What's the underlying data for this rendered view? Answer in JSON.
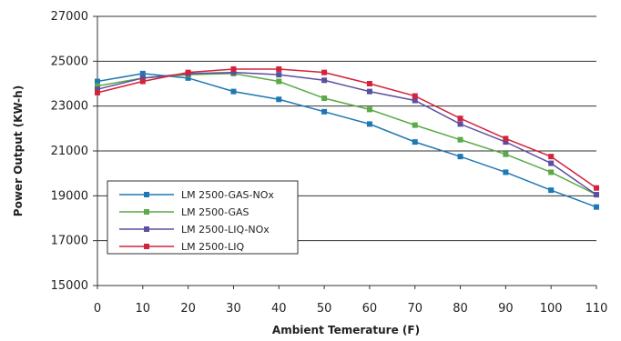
{
  "chart_data": {
    "type": "line",
    "xlabel": "Ambient Temerature (F)",
    "ylabel": "Power Output (KW-h)",
    "x": [
      0,
      10,
      20,
      30,
      40,
      50,
      60,
      70,
      80,
      90,
      100,
      110
    ],
    "xticks": [
      "0",
      "10",
      "20",
      "30",
      "40",
      "50",
      "60",
      "70",
      "80",
      "90",
      "100",
      "110"
    ],
    "yticks": [
      "15000",
      "17000",
      "19000",
      "21000",
      "23000",
      "25000",
      "27000"
    ],
    "xlim": [
      0,
      110
    ],
    "ylim": [
      15000,
      27000
    ],
    "grid": "horizontal",
    "legend_position": "lower-left",
    "series": [
      {
        "name": "LM 2500-GAS-NOx",
        "color": "#1f77b4",
        "values": [
          24100,
          24450,
          24250,
          23650,
          23300,
          22750,
          22200,
          21400,
          20750,
          20050,
          19250,
          18500
        ]
      },
      {
        "name": "LM 2500-GAS",
        "color": "#5aaa46",
        "values": [
          23900,
          24250,
          24400,
          24450,
          24100,
          23350,
          22850,
          22150,
          21500,
          20850,
          20050,
          19050
        ]
      },
      {
        "name": "LM 2500-LIQ-NOx",
        "color": "#5b4fa0",
        "values": [
          23750,
          24250,
          24450,
          24500,
          24400,
          24150,
          23650,
          23250,
          22200,
          21400,
          20450,
          19050
        ]
      },
      {
        "name": "LM 2500-LIQ",
        "color": "#d2233c",
        "values": [
          23600,
          24100,
          24500,
          24650,
          24650,
          24500,
          24000,
          23450,
          22450,
          21550,
          20750,
          19350
        ]
      }
    ]
  }
}
